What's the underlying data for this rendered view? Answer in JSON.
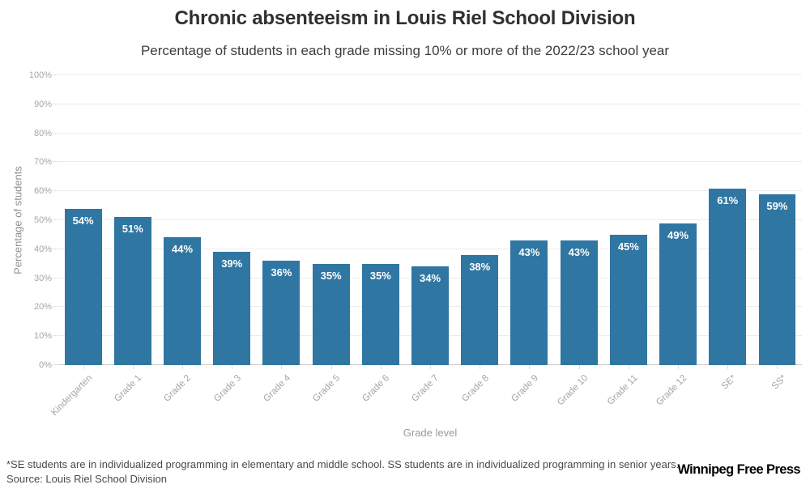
{
  "chart_data": {
    "type": "bar",
    "title": "Chronic absenteeism in Louis Riel School Division",
    "subtitle": "Percentage of students in each grade missing 10% or more of the 2022/23 school year",
    "categories": [
      "Kindergarten",
      "Grade 1",
      "Grade 2",
      "Grade 3",
      "Grade 4",
      "Grade 5",
      "Grade 6",
      "Grade 7",
      "Grade 8",
      "Grade 9",
      "Grade 10",
      "Grade 11",
      "Grade 12",
      "SE*",
      "SS*"
    ],
    "values": [
      54,
      51,
      44,
      39,
      36,
      35,
      35,
      34,
      38,
      43,
      43,
      45,
      49,
      61,
      59
    ],
    "bar_labels": [
      "54%",
      "51%",
      "44%",
      "39%",
      "36%",
      "35%",
      "35%",
      "34%",
      "38%",
      "43%",
      "43%",
      "45%",
      "49%",
      "61%",
      "59%"
    ],
    "xlabel": "Grade level",
    "ylabel": "Percentage of students",
    "ylim": [
      0,
      100
    ],
    "ytick_step": 10,
    "ytick_labels": [
      "0%",
      "10%",
      "20%",
      "30%",
      "40%",
      "50%",
      "60%",
      "70%",
      "80%",
      "90%",
      "100%"
    ],
    "grid": true,
    "legend": "none",
    "bar_color": "#2f76a2",
    "bar_label_color": "#ffffff"
  },
  "footer": {
    "footnote": "*SE students are in individualized programming in elementary and middle school. SS students are in individualized programming in senior years.",
    "source": "Source: Louis Riel School Division",
    "brand": "Winnipeg Free Press"
  }
}
